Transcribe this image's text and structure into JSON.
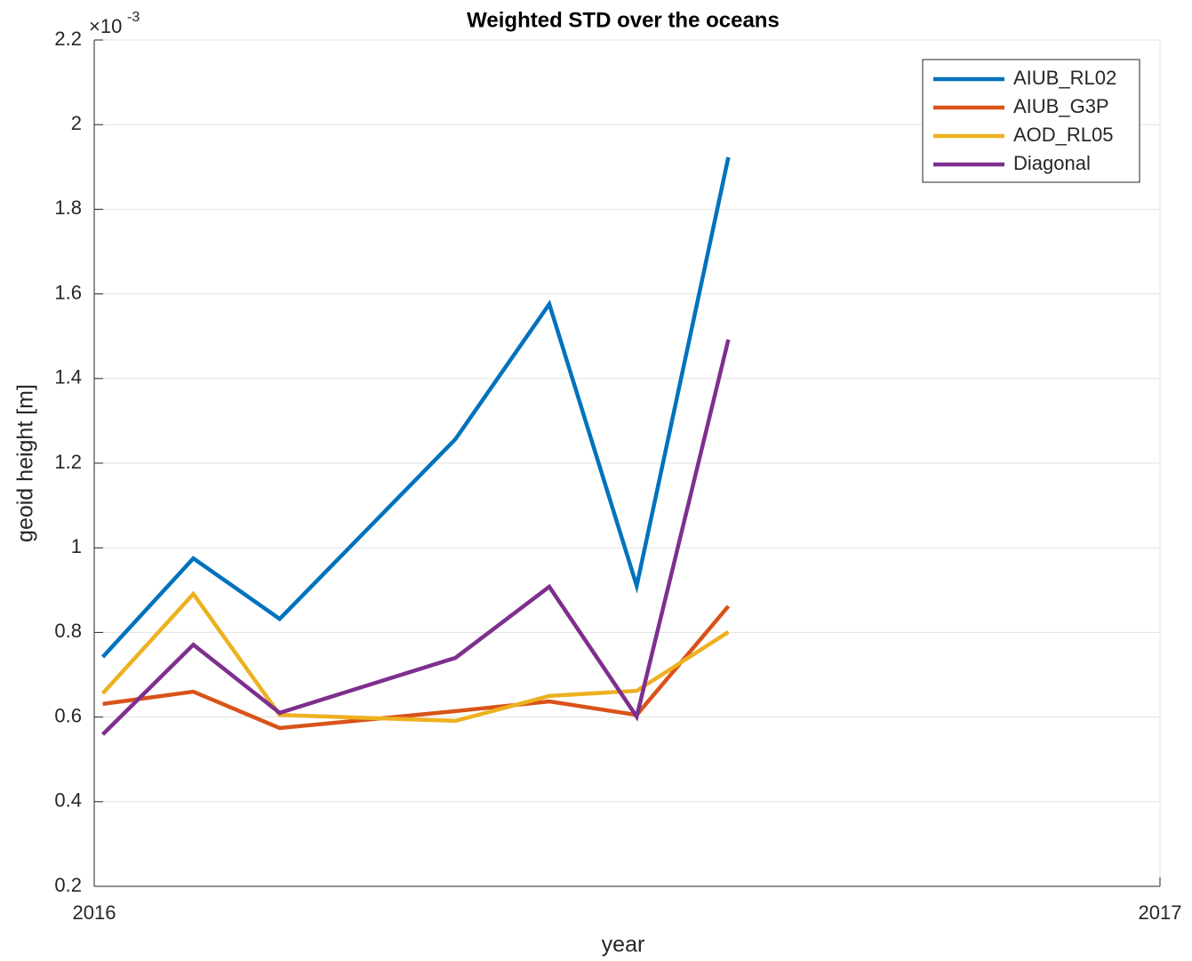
{
  "chart_data": {
    "type": "line",
    "title": "Weighted STD over the oceans",
    "x_label": "year",
    "y_label": "geoid height [m]",
    "y_exponent_base": "×10",
    "y_exponent": "-3",
    "x": [
      2016.008,
      2016.093,
      2016.174,
      2016.339,
      2016.427,
      2016.509,
      2016.595
    ],
    "series": [
      {
        "name": "AIUB_RL02",
        "color": "#0072BD",
        "values": [
          0.000742,
          0.000975,
          0.000832,
          0.001257,
          0.001576,
          0.00091,
          0.001923
        ]
      },
      {
        "name": "AIUB_G3P",
        "color": "#D95319",
        "values": [
          0.000631,
          0.00066,
          0.000574,
          0.000614,
          0.000637,
          0.000605,
          0.000862
        ]
      },
      {
        "name": "AOD_RL05",
        "color": "#EDB120",
        "values": [
          0.000656,
          0.000891,
          0.000605,
          0.000591,
          0.00065,
          0.000662,
          0.000801
        ]
      },
      {
        "name": "Diagonal",
        "color": "#7E2F8E",
        "values": [
          0.000559,
          0.000771,
          0.00061,
          0.00074,
          0.000908,
          0.000601,
          0.001492
        ]
      }
    ],
    "xlim": [
      2016,
      2017
    ],
    "xticks": [
      2016,
      2017
    ],
    "ylim": [
      0.0002,
      0.0022
    ],
    "yticks": [
      {
        "value": 0.0002,
        "label": "0.2"
      },
      {
        "value": 0.0004,
        "label": "0.4"
      },
      {
        "value": 0.0006,
        "label": "0.6"
      },
      {
        "value": 0.0008,
        "label": "0.8"
      },
      {
        "value": 0.001,
        "label": "1"
      },
      {
        "value": 0.0012,
        "label": "1.2"
      },
      {
        "value": 0.0014,
        "label": "1.4"
      },
      {
        "value": 0.0016,
        "label": "1.6"
      },
      {
        "value": 0.0018,
        "label": "1.8"
      },
      {
        "value": 0.002,
        "label": "2"
      },
      {
        "value": 0.0022,
        "label": "2.2"
      }
    ],
    "grid": true,
    "legend": "top-right"
  }
}
